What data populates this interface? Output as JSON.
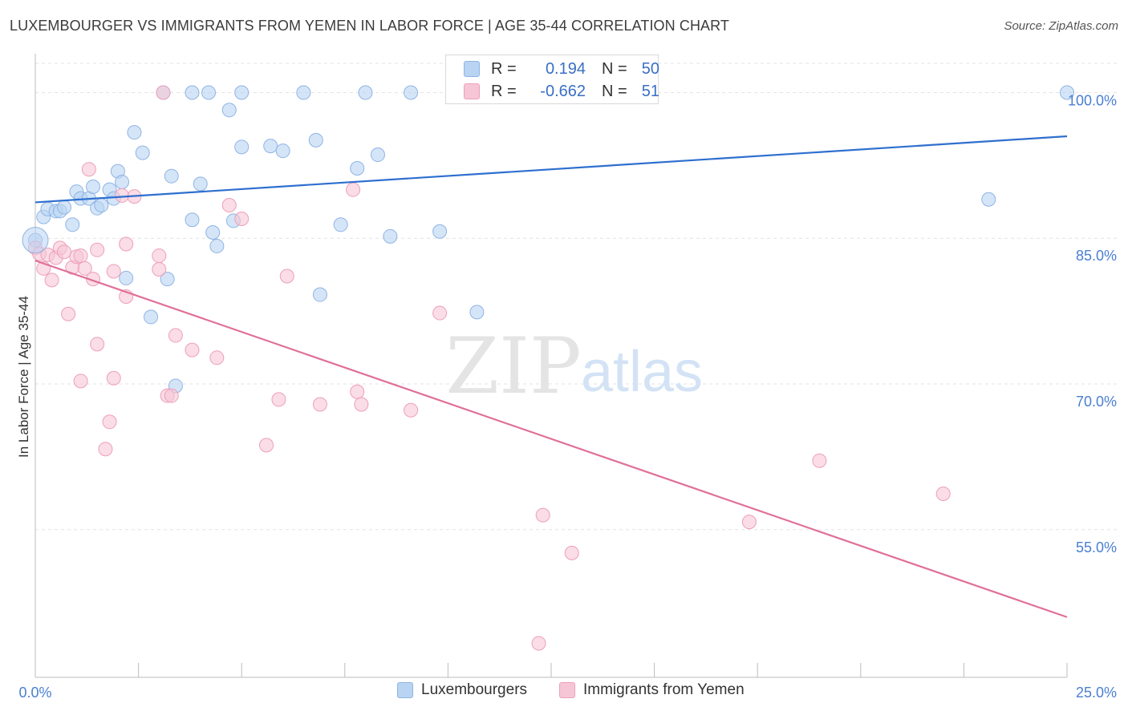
{
  "title": "LUXEMBOURGER VS IMMIGRANTS FROM YEMEN IN LABOR FORCE | AGE 35-44 CORRELATION CHART",
  "source": "Source: ZipAtlas.com",
  "watermark": {
    "zip": "ZIP",
    "atlas": "atlas"
  },
  "colors": {
    "blue_fill": "#b9d3f3",
    "blue_stroke": "#8fb4e4",
    "blue_line": "#2e6fcf",
    "pink_fill": "#f6c6d6",
    "pink_stroke": "#ee9fba",
    "pink_line": "#e0709a",
    "tick_label": "#4a7fd1",
    "grid": "#e3e3e3"
  },
  "legend": {
    "rows": [
      {
        "r_label": "R =",
        "r_value": "0.194",
        "n_label": "N =",
        "n_value": "50"
      },
      {
        "r_label": "R =",
        "r_value": "-0.662",
        "n_label": "N =",
        "n_value": "51"
      }
    ]
  },
  "chart_data": {
    "type": "scatter",
    "title": "LUXEMBOURGER VS IMMIGRANTS FROM YEMEN IN LABOR FORCE | AGE 35-44 CORRELATION CHART",
    "xlabel": "",
    "ylabel": "In Labor Force | Age 35-44",
    "xlim": [
      0,
      25
    ],
    "ylim": [
      39.8,
      104
    ],
    "x_tick_labels": [
      "0.0%",
      "25.0%"
    ],
    "y_ticks": [
      55,
      70,
      85,
      100
    ],
    "y_tick_labels": [
      "55.0%",
      "70.0%",
      "85.0%",
      "100.0%"
    ],
    "grid": true,
    "legend_position": "top-center",
    "series": [
      {
        "name": "Luxembourgers",
        "trend": [
          [
            0,
            88.7
          ],
          [
            25,
            95.5
          ]
        ],
        "points": [
          [
            0.0,
            84.8
          ],
          [
            0.2,
            87.2
          ],
          [
            0.3,
            88.0
          ],
          [
            0.5,
            87.8
          ],
          [
            0.6,
            87.8
          ],
          [
            0.7,
            88.2
          ],
          [
            0.9,
            86.4
          ],
          [
            1.0,
            89.8
          ],
          [
            1.1,
            89.1
          ],
          [
            1.3,
            89.1
          ],
          [
            1.4,
            90.3
          ],
          [
            1.5,
            88.1
          ],
          [
            1.6,
            88.4
          ],
          [
            1.8,
            90.0
          ],
          [
            1.9,
            89.1
          ],
          [
            2.0,
            91.9
          ],
          [
            2.1,
            90.8
          ],
          [
            2.2,
            80.9
          ],
          [
            2.4,
            95.9
          ],
          [
            2.6,
            93.8
          ],
          [
            2.8,
            76.9
          ],
          [
            3.1,
            100.0
          ],
          [
            3.2,
            80.8
          ],
          [
            3.3,
            91.4
          ],
          [
            3.4,
            69.8
          ],
          [
            3.8,
            86.9
          ],
          [
            3.8,
            100.0
          ],
          [
            4.0,
            90.6
          ],
          [
            4.2,
            100.0
          ],
          [
            4.3,
            85.6
          ],
          [
            4.4,
            84.2
          ],
          [
            4.7,
            98.2
          ],
          [
            4.8,
            86.8
          ],
          [
            5.0,
            100.0
          ],
          [
            5.0,
            94.4
          ],
          [
            5.7,
            94.5
          ],
          [
            6.0,
            94.0
          ],
          [
            6.5,
            100.0
          ],
          [
            6.8,
            95.1
          ],
          [
            6.9,
            79.2
          ],
          [
            7.4,
            86.4
          ],
          [
            7.8,
            92.2
          ],
          [
            8.0,
            100.0
          ],
          [
            8.3,
            93.6
          ],
          [
            8.6,
            85.2
          ],
          [
            9.1,
            100.0
          ],
          [
            9.8,
            85.7
          ],
          [
            10.7,
            77.4
          ],
          [
            23.1,
            89.0
          ],
          [
            25.0,
            100.0
          ]
        ]
      },
      {
        "name": "Immigrants from Yemen",
        "trend": [
          [
            0,
            82.7
          ],
          [
            25,
            46.0
          ]
        ],
        "points": [
          [
            0.0,
            84.0
          ],
          [
            0.1,
            83.4
          ],
          [
            0.2,
            81.9
          ],
          [
            0.3,
            83.3
          ],
          [
            0.4,
            80.7
          ],
          [
            0.5,
            83.0
          ],
          [
            0.6,
            84.0
          ],
          [
            0.7,
            83.6
          ],
          [
            0.8,
            77.2
          ],
          [
            0.9,
            82.0
          ],
          [
            1.0,
            83.1
          ],
          [
            1.1,
            83.2
          ],
          [
            1.1,
            70.3
          ],
          [
            1.2,
            81.9
          ],
          [
            1.3,
            92.1
          ],
          [
            1.4,
            80.8
          ],
          [
            1.5,
            83.8
          ],
          [
            1.5,
            74.1
          ],
          [
            1.7,
            63.3
          ],
          [
            1.8,
            66.1
          ],
          [
            1.9,
            70.6
          ],
          [
            1.9,
            81.6
          ],
          [
            2.1,
            89.4
          ],
          [
            2.2,
            79.0
          ],
          [
            2.2,
            84.4
          ],
          [
            2.4,
            89.3
          ],
          [
            3.0,
            83.2
          ],
          [
            3.0,
            81.8
          ],
          [
            3.1,
            100.0
          ],
          [
            3.2,
            68.8
          ],
          [
            3.3,
            68.8
          ],
          [
            3.4,
            75.0
          ],
          [
            3.8,
            73.5
          ],
          [
            4.4,
            72.7
          ],
          [
            4.7,
            88.4
          ],
          [
            5.0,
            87.0
          ],
          [
            5.6,
            63.7
          ],
          [
            5.9,
            68.4
          ],
          [
            6.1,
            81.1
          ],
          [
            6.9,
            67.9
          ],
          [
            7.7,
            90.0
          ],
          [
            7.8,
            69.2
          ],
          [
            7.9,
            67.9
          ],
          [
            9.1,
            67.3
          ],
          [
            9.8,
            77.3
          ],
          [
            12.3,
            56.5
          ],
          [
            12.2,
            43.3
          ],
          [
            13.0,
            52.6
          ],
          [
            17.3,
            55.8
          ],
          [
            19.0,
            62.1
          ],
          [
            22.0,
            58.7
          ]
        ]
      }
    ]
  }
}
